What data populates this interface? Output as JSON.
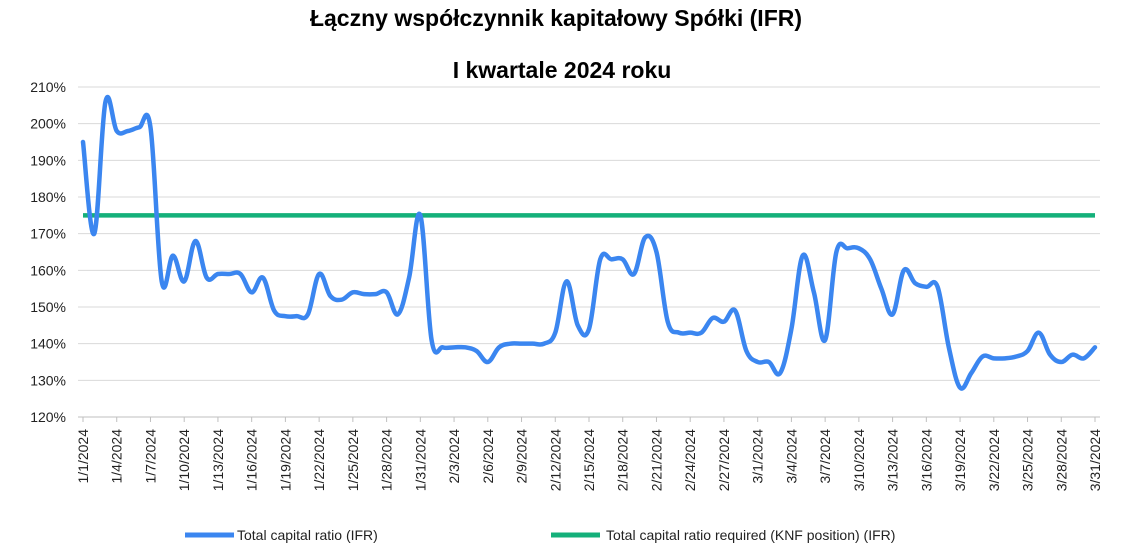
{
  "chart_data": {
    "type": "line",
    "title": "Łączny współczynnik kapitałowy Spółki (IFR)",
    "subtitle": "I kwartale 2024 roku",
    "ylim": [
      1.2,
      2.1
    ],
    "y_ticks": [
      "120%",
      "130%",
      "140%",
      "150%",
      "160%",
      "170%",
      "180%",
      "190%",
      "200%",
      "210%"
    ],
    "x_tick_labels": [
      "1/1/2024",
      "1/4/2024",
      "1/7/2024",
      "1/10/2024",
      "1/13/2024",
      "1/16/2024",
      "1/19/2024",
      "1/22/2024",
      "1/25/2024",
      "1/28/2024",
      "1/31/2024",
      "2/3/2024",
      "2/6/2024",
      "2/9/2024",
      "2/12/2024",
      "2/15/2024",
      "2/18/2024",
      "2/21/2024",
      "2/24/2024",
      "2/27/2024",
      "3/1/2024",
      "3/4/2024",
      "3/7/2024",
      "3/10/2024",
      "3/13/2024",
      "3/16/2024",
      "3/19/2024",
      "3/22/2024",
      "3/25/2024",
      "3/28/2024",
      "3/31/2024"
    ],
    "grid": true,
    "legend_position": "bottom",
    "x": [
      "1/1/2024",
      "1/2/2024",
      "1/3/2024",
      "1/4/2024",
      "1/5/2024",
      "1/6/2024",
      "1/7/2024",
      "1/8/2024",
      "1/9/2024",
      "1/10/2024",
      "1/11/2024",
      "1/12/2024",
      "1/13/2024",
      "1/14/2024",
      "1/15/2024",
      "1/16/2024",
      "1/17/2024",
      "1/18/2024",
      "1/19/2024",
      "1/20/2024",
      "1/21/2024",
      "1/22/2024",
      "1/23/2024",
      "1/24/2024",
      "1/25/2024",
      "1/26/2024",
      "1/27/2024",
      "1/28/2024",
      "1/29/2024",
      "1/30/2024",
      "1/31/2024",
      "2/1/2024",
      "2/2/2024",
      "2/3/2024",
      "2/4/2024",
      "2/5/2024",
      "2/6/2024",
      "2/7/2024",
      "2/8/2024",
      "2/9/2024",
      "2/10/2024",
      "2/11/2024",
      "2/12/2024",
      "2/13/2024",
      "2/14/2024",
      "2/15/2024",
      "2/16/2024",
      "2/17/2024",
      "2/18/2024",
      "2/19/2024",
      "2/20/2024",
      "2/21/2024",
      "2/22/2024",
      "2/23/2024",
      "2/24/2024",
      "2/25/2024",
      "2/26/2024",
      "2/27/2024",
      "2/28/2024",
      "2/29/2024",
      "3/1/2024",
      "3/2/2024",
      "3/3/2024",
      "3/4/2024",
      "3/5/2024",
      "3/6/2024",
      "3/7/2024",
      "3/8/2024",
      "3/9/2024",
      "3/10/2024",
      "3/11/2024",
      "3/12/2024",
      "3/13/2024",
      "3/14/2024",
      "3/15/2024",
      "3/16/2024",
      "3/17/2024",
      "3/18/2024",
      "3/19/2024",
      "3/20/2024",
      "3/21/2024",
      "3/22/2024",
      "3/23/2024",
      "3/24/2024",
      "3/25/2024",
      "3/26/2024",
      "3/27/2024",
      "3/28/2024",
      "3/29/2024",
      "3/30/2024",
      "3/31/2024"
    ],
    "series": [
      {
        "name": "Total capital ratio (IFR)",
        "color": "#3b86f0",
        "values": [
          1.95,
          1.7,
          2.06,
          1.98,
          1.98,
          1.99,
          1.99,
          1.57,
          1.64,
          1.57,
          1.68,
          1.58,
          1.59,
          1.59,
          1.59,
          1.54,
          1.58,
          1.49,
          1.475,
          1.475,
          1.48,
          1.59,
          1.53,
          1.52,
          1.54,
          1.535,
          1.535,
          1.54,
          1.48,
          1.58,
          1.75,
          1.41,
          1.39,
          1.39,
          1.39,
          1.38,
          1.35,
          1.39,
          1.4,
          1.4,
          1.4,
          1.4,
          1.43,
          1.57,
          1.45,
          1.44,
          1.63,
          1.63,
          1.63,
          1.59,
          1.69,
          1.65,
          1.46,
          1.43,
          1.43,
          1.43,
          1.47,
          1.46,
          1.49,
          1.38,
          1.35,
          1.35,
          1.32,
          1.44,
          1.64,
          1.54,
          1.41,
          1.65,
          1.66,
          1.66,
          1.63,
          1.55,
          1.48,
          1.6,
          1.565,
          1.555,
          1.555,
          1.39,
          1.28,
          1.32,
          1.365,
          1.36,
          1.36,
          1.365,
          1.38,
          1.43,
          1.37,
          1.35,
          1.37,
          1.36,
          1.39
        ]
      },
      {
        "name": "Total capital ratio required (KNF position) (IFR)",
        "color": "#14b07a",
        "values": "constant",
        "constant_value": 1.75
      }
    ]
  }
}
